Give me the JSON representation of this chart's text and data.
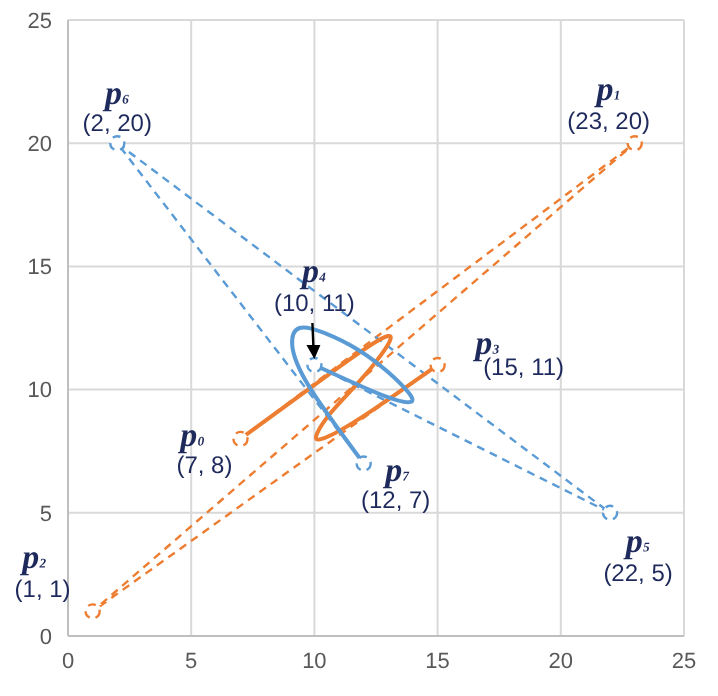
{
  "chart_data": {
    "type": "line",
    "xlim": [
      0,
      25
    ],
    "ylim": [
      0,
      25
    ],
    "xticks": [
      0,
      5,
      10,
      15,
      20,
      25
    ],
    "yticks": [
      0,
      5,
      10,
      15,
      20,
      25
    ],
    "grid": true,
    "legend": false,
    "series": [
      {
        "type": "line",
        "color": "#ed7d31",
        "line_style": "dashed",
        "marker": "circle",
        "x": [
          7,
          23,
          1,
          15
        ],
        "values": [
          8,
          20,
          1,
          11
        ]
      },
      {
        "type": "line",
        "color": "#5b9bd5",
        "line_style": "dashed",
        "marker": "circle",
        "x": [
          10,
          22,
          2,
          12
        ],
        "values": [
          11,
          5,
          20,
          7
        ]
      },
      {
        "type": "line",
        "color": "#ed7d31",
        "line_style": "solid",
        "marker": "none",
        "x": [
          7,
          10.7,
          12.6,
          13.1,
          12.7,
          11.8,
          10.7,
          10.1,
          10.3,
          11.8,
          15
        ],
        "values": [
          8,
          10.7,
          12,
          12.1,
          11.4,
          10.3,
          9.1,
          8.2,
          8,
          8.8,
          11
        ]
      },
      {
        "type": "line",
        "color": "#5b9bd5",
        "line_style": "solid",
        "marker": "none",
        "x": [
          10,
          12.7,
          13.9,
          13.8,
          13,
          11.8,
          10.4,
          9.4,
          9.1,
          9.8,
          12
        ],
        "values": [
          11,
          9.8,
          9.5,
          9.9,
          10.7,
          11.6,
          12.3,
          12.5,
          11.8,
          10.1,
          7
        ]
      }
    ],
    "annotations": [
      {
        "text": "p₀",
        "x": 7,
        "y": 8
      },
      {
        "text": "(7, 8)",
        "x": 7,
        "y": 8
      },
      {
        "text": "p₁",
        "x": 23,
        "y": 20
      },
      {
        "text": "(23, 20)",
        "x": 23,
        "y": 20
      },
      {
        "text": "p₂",
        "x": 1,
        "y": 1
      },
      {
        "text": "(1, 1)",
        "x": 1,
        "y": 1
      },
      {
        "text": "p₃",
        "x": 15,
        "y": 11
      },
      {
        "text": "(15, 11)",
        "x": 15,
        "y": 11
      },
      {
        "text": "p₄",
        "x": 10,
        "y": 11
      },
      {
        "text": "(10, 11)",
        "x": 10,
        "y": 11
      },
      {
        "text": "p₅",
        "x": 22,
        "y": 5
      },
      {
        "text": "(22, 5)",
        "x": 22,
        "y": 5
      },
      {
        "text": "p₆",
        "x": 2,
        "y": 20
      },
      {
        "text": "(2, 20)",
        "x": 2,
        "y": 20
      },
      {
        "text": "p₇",
        "x": 12,
        "y": 7
      },
      {
        "text": "(12, 7)",
        "x": 12,
        "y": 7
      }
    ]
  }
}
